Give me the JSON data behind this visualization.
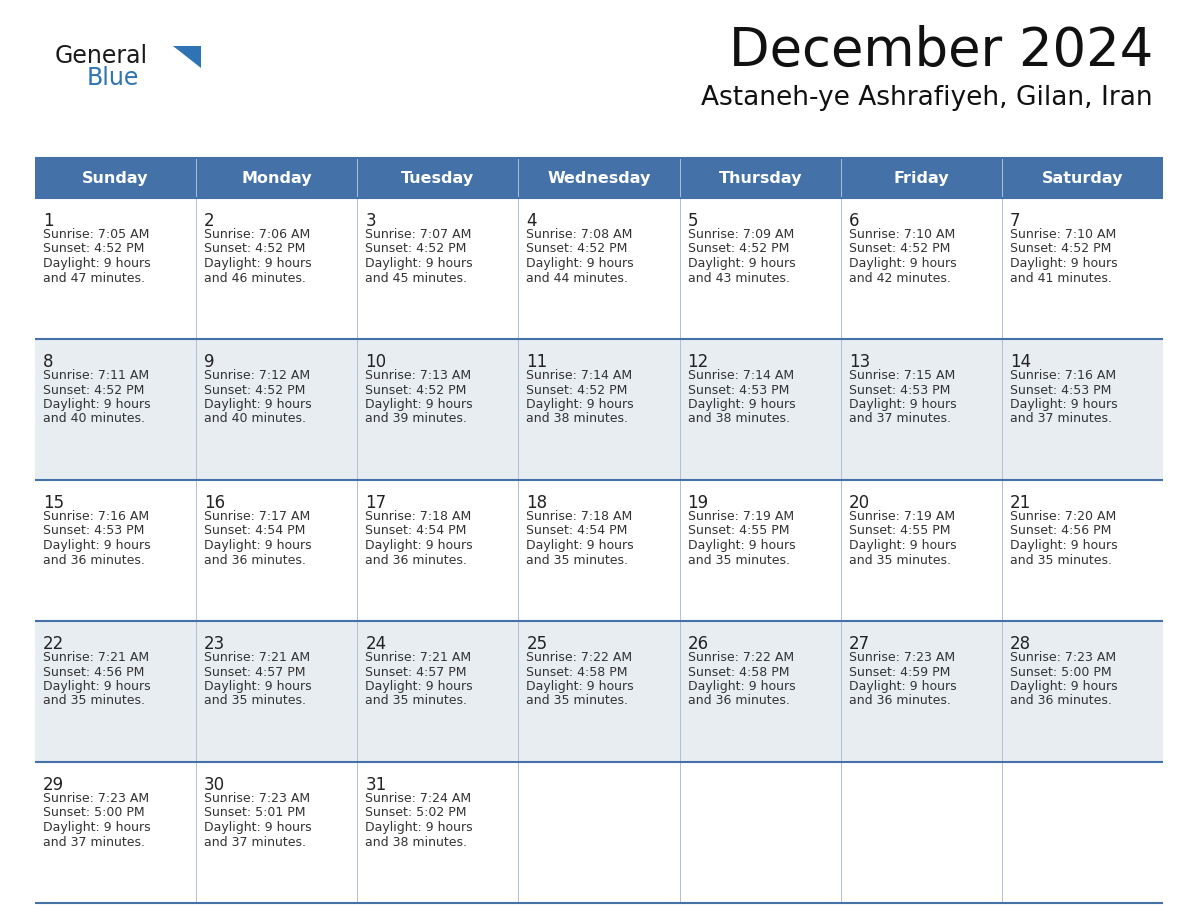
{
  "title": "December 2024",
  "subtitle": "Astaneh-ye Ashrafiyeh, Gilan, Iran",
  "header_color": "#4472a8",
  "header_text_color": "#ffffff",
  "cell_bg_white": "#ffffff",
  "cell_bg_gray": "#e8edf2",
  "day_names": [
    "Sunday",
    "Monday",
    "Tuesday",
    "Wednesday",
    "Thursday",
    "Friday",
    "Saturday"
  ],
  "logo_general_color": "#1a1a1a",
  "logo_blue_color": "#2e74b5",
  "divider_color": "#4472a8",
  "col_divider_color": "#b0c0d8",
  "day_num_color": "#222222",
  "text_color": "#333333",
  "calendar": [
    [
      {
        "day": 1,
        "sunrise": "7:05 AM",
        "sunset": "4:52 PM",
        "daylight_line1": "Daylight: 9 hours",
        "daylight_line2": "and 47 minutes."
      },
      {
        "day": 2,
        "sunrise": "7:06 AM",
        "sunset": "4:52 PM",
        "daylight_line1": "Daylight: 9 hours",
        "daylight_line2": "and 46 minutes."
      },
      {
        "day": 3,
        "sunrise": "7:07 AM",
        "sunset": "4:52 PM",
        "daylight_line1": "Daylight: 9 hours",
        "daylight_line2": "and 45 minutes."
      },
      {
        "day": 4,
        "sunrise": "7:08 AM",
        "sunset": "4:52 PM",
        "daylight_line1": "Daylight: 9 hours",
        "daylight_line2": "and 44 minutes."
      },
      {
        "day": 5,
        "sunrise": "7:09 AM",
        "sunset": "4:52 PM",
        "daylight_line1": "Daylight: 9 hours",
        "daylight_line2": "and 43 minutes."
      },
      {
        "day": 6,
        "sunrise": "7:10 AM",
        "sunset": "4:52 PM",
        "daylight_line1": "Daylight: 9 hours",
        "daylight_line2": "and 42 minutes."
      },
      {
        "day": 7,
        "sunrise": "7:10 AM",
        "sunset": "4:52 PM",
        "daylight_line1": "Daylight: 9 hours",
        "daylight_line2": "and 41 minutes."
      }
    ],
    [
      {
        "day": 8,
        "sunrise": "7:11 AM",
        "sunset": "4:52 PM",
        "daylight_line1": "Daylight: 9 hours",
        "daylight_line2": "and 40 minutes."
      },
      {
        "day": 9,
        "sunrise": "7:12 AM",
        "sunset": "4:52 PM",
        "daylight_line1": "Daylight: 9 hours",
        "daylight_line2": "and 40 minutes."
      },
      {
        "day": 10,
        "sunrise": "7:13 AM",
        "sunset": "4:52 PM",
        "daylight_line1": "Daylight: 9 hours",
        "daylight_line2": "and 39 minutes."
      },
      {
        "day": 11,
        "sunrise": "7:14 AM",
        "sunset": "4:52 PM",
        "daylight_line1": "Daylight: 9 hours",
        "daylight_line2": "and 38 minutes."
      },
      {
        "day": 12,
        "sunrise": "7:14 AM",
        "sunset": "4:53 PM",
        "daylight_line1": "Daylight: 9 hours",
        "daylight_line2": "and 38 minutes."
      },
      {
        "day": 13,
        "sunrise": "7:15 AM",
        "sunset": "4:53 PM",
        "daylight_line1": "Daylight: 9 hours",
        "daylight_line2": "and 37 minutes."
      },
      {
        "day": 14,
        "sunrise": "7:16 AM",
        "sunset": "4:53 PM",
        "daylight_line1": "Daylight: 9 hours",
        "daylight_line2": "and 37 minutes."
      }
    ],
    [
      {
        "day": 15,
        "sunrise": "7:16 AM",
        "sunset": "4:53 PM",
        "daylight_line1": "Daylight: 9 hours",
        "daylight_line2": "and 36 minutes."
      },
      {
        "day": 16,
        "sunrise": "7:17 AM",
        "sunset": "4:54 PM",
        "daylight_line1": "Daylight: 9 hours",
        "daylight_line2": "and 36 minutes."
      },
      {
        "day": 17,
        "sunrise": "7:18 AM",
        "sunset": "4:54 PM",
        "daylight_line1": "Daylight: 9 hours",
        "daylight_line2": "and 36 minutes."
      },
      {
        "day": 18,
        "sunrise": "7:18 AM",
        "sunset": "4:54 PM",
        "daylight_line1": "Daylight: 9 hours",
        "daylight_line2": "and 35 minutes."
      },
      {
        "day": 19,
        "sunrise": "7:19 AM",
        "sunset": "4:55 PM",
        "daylight_line1": "Daylight: 9 hours",
        "daylight_line2": "and 35 minutes."
      },
      {
        "day": 20,
        "sunrise": "7:19 AM",
        "sunset": "4:55 PM",
        "daylight_line1": "Daylight: 9 hours",
        "daylight_line2": "and 35 minutes."
      },
      {
        "day": 21,
        "sunrise": "7:20 AM",
        "sunset": "4:56 PM",
        "daylight_line1": "Daylight: 9 hours",
        "daylight_line2": "and 35 minutes."
      }
    ],
    [
      {
        "day": 22,
        "sunrise": "7:21 AM",
        "sunset": "4:56 PM",
        "daylight_line1": "Daylight: 9 hours",
        "daylight_line2": "and 35 minutes."
      },
      {
        "day": 23,
        "sunrise": "7:21 AM",
        "sunset": "4:57 PM",
        "daylight_line1": "Daylight: 9 hours",
        "daylight_line2": "and 35 minutes."
      },
      {
        "day": 24,
        "sunrise": "7:21 AM",
        "sunset": "4:57 PM",
        "daylight_line1": "Daylight: 9 hours",
        "daylight_line2": "and 35 minutes."
      },
      {
        "day": 25,
        "sunrise": "7:22 AM",
        "sunset": "4:58 PM",
        "daylight_line1": "Daylight: 9 hours",
        "daylight_line2": "and 35 minutes."
      },
      {
        "day": 26,
        "sunrise": "7:22 AM",
        "sunset": "4:58 PM",
        "daylight_line1": "Daylight: 9 hours",
        "daylight_line2": "and 36 minutes."
      },
      {
        "day": 27,
        "sunrise": "7:23 AM",
        "sunset": "4:59 PM",
        "daylight_line1": "Daylight: 9 hours",
        "daylight_line2": "and 36 minutes."
      },
      {
        "day": 28,
        "sunrise": "7:23 AM",
        "sunset": "5:00 PM",
        "daylight_line1": "Daylight: 9 hours",
        "daylight_line2": "and 36 minutes."
      }
    ],
    [
      {
        "day": 29,
        "sunrise": "7:23 AM",
        "sunset": "5:00 PM",
        "daylight_line1": "Daylight: 9 hours",
        "daylight_line2": "and 37 minutes."
      },
      {
        "day": 30,
        "sunrise": "7:23 AM",
        "sunset": "5:01 PM",
        "daylight_line1": "Daylight: 9 hours",
        "daylight_line2": "and 37 minutes."
      },
      {
        "day": 31,
        "sunrise": "7:24 AM",
        "sunset": "5:02 PM",
        "daylight_line1": "Daylight: 9 hours",
        "daylight_line2": "and 38 minutes."
      },
      null,
      null,
      null,
      null
    ]
  ]
}
